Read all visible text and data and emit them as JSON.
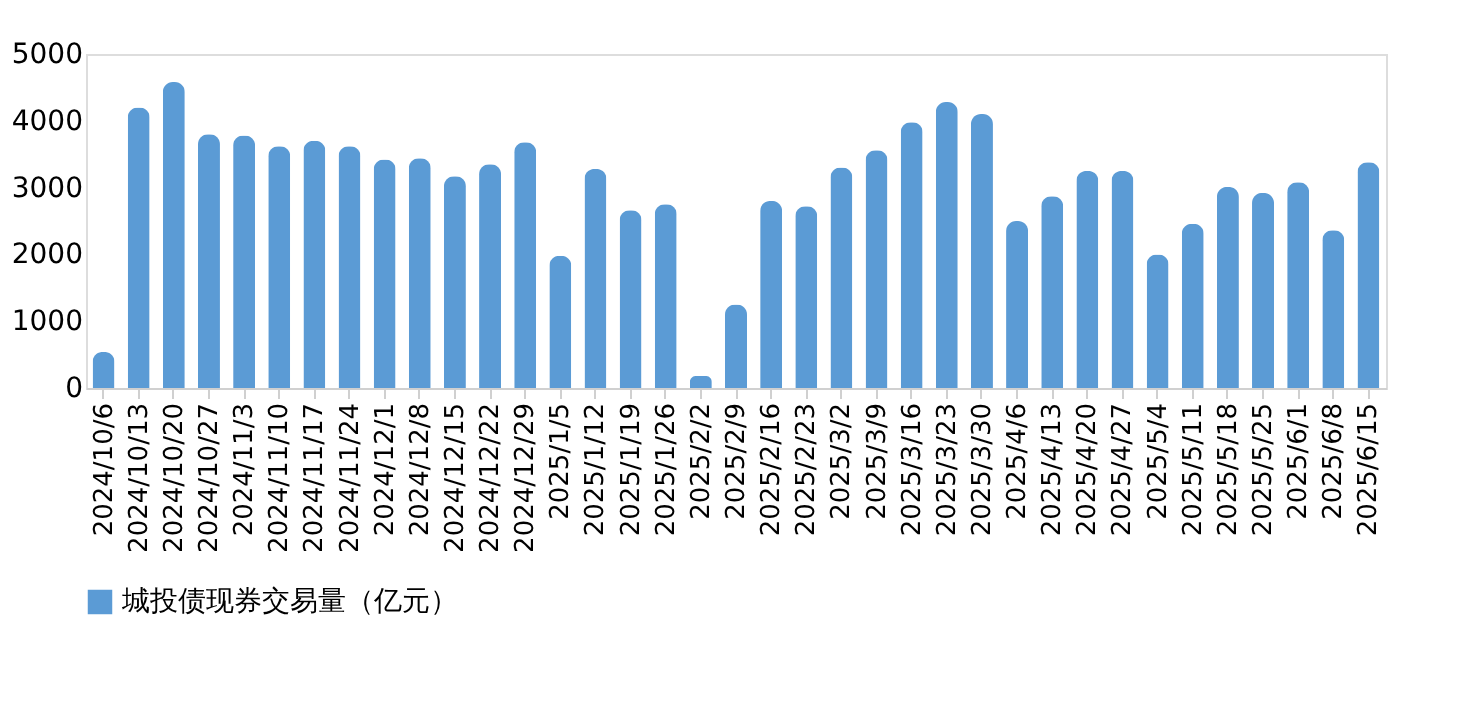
{
  "chart_data": {
    "type": "bar",
    "categories": [
      "2024/10/6",
      "2024/10/13",
      "2024/10/20",
      "2024/10/27",
      "2024/11/3",
      "2024/11/10",
      "2024/11/17",
      "2024/11/24",
      "2024/12/1",
      "2024/12/8",
      "2024/12/15",
      "2024/12/22",
      "2024/12/29",
      "2025/1/5",
      "2025/1/12",
      "2025/1/19",
      "2025/1/26",
      "2025/2/2",
      "2025/2/9",
      "2025/2/16",
      "2025/2/23",
      "2025/3/2",
      "2025/3/9",
      "2025/3/16",
      "2025/3/23",
      "2025/3/30",
      "2025/4/6",
      "2025/4/13",
      "2025/4/20",
      "2025/4/27",
      "2025/5/4",
      "2025/5/11",
      "2025/5/18",
      "2025/5/25",
      "2025/6/1",
      "2025/6/8",
      "2025/6/15"
    ],
    "series": [
      {
        "name": "城投债现券交易量（亿元）",
        "color": "#5b9bd5",
        "values": [
          540,
          4200,
          4580,
          3800,
          3780,
          3620,
          3700,
          3620,
          3420,
          3440,
          3170,
          3350,
          3680,
          1980,
          3280,
          2660,
          2750,
          180,
          1250,
          2800,
          2720,
          3300,
          3560,
          3980,
          4280,
          4100,
          2500,
          2870,
          3250,
          3250,
          2000,
          2460,
          3010,
          2920,
          3080,
          2360,
          3380
        ]
      }
    ],
    "ylim": [
      0,
      5000
    ],
    "yticks": [
      0,
      1000,
      2000,
      3000,
      4000,
      5000
    ],
    "grid": false,
    "legend": "bottom"
  }
}
